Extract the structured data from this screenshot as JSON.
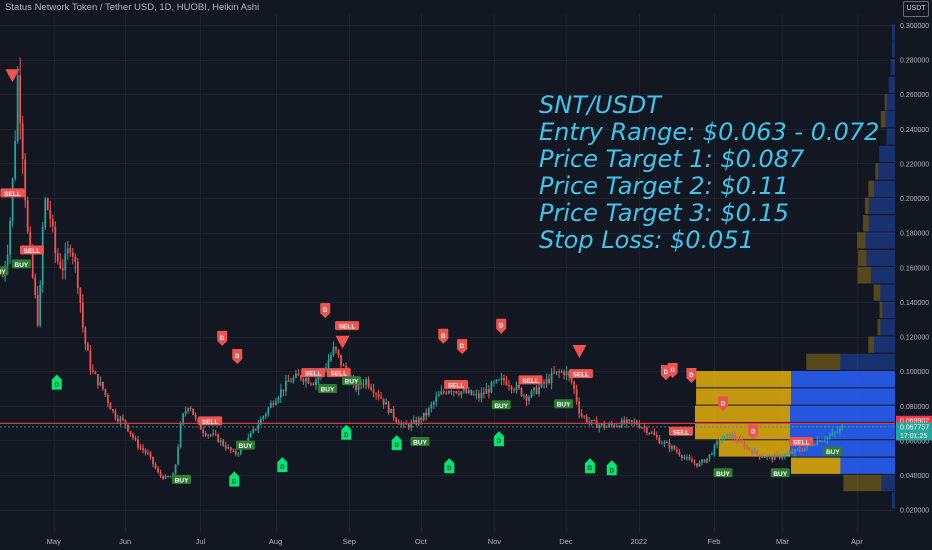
{
  "chart_data": {
    "type": "candlestick",
    "title": "Status Network Token / Tether USD, 1D, HUOBI, Heikin Ashi",
    "currency": "USDT",
    "ylim": [
      0.02,
      0.3
    ],
    "y_ticks": [
      "0.300000",
      "0.280000",
      "0.260000",
      "0.240000",
      "0.220000",
      "0.200000",
      "0.180000",
      "0.160000",
      "0.140000",
      "0.120000",
      "0.100000",
      "0.080000",
      "0.060000",
      "0.040000",
      "0.020000"
    ],
    "x_ticks": [
      {
        "label": "May",
        "t": 0.05
      },
      {
        "label": "Jun",
        "t": 1.0
      },
      {
        "label": "Jul",
        "t": 2.0
      },
      {
        "label": "Aug",
        "t": 3.0
      },
      {
        "label": "Sep",
        "t": 3.98
      },
      {
        "label": "Oct",
        "t": 4.93
      },
      {
        "label": "Nov",
        "t": 5.91
      },
      {
        "label": "Dec",
        "t": 6.86
      },
      {
        "label": "2022",
        "t": 7.83
      },
      {
        "label": "Feb",
        "t": 8.83
      },
      {
        "label": "Mar",
        "t": 9.74
      },
      {
        "label": "Apr",
        "t": 10.73
      }
    ],
    "price_path": [
      [
        -0.63,
        0.155
      ],
      [
        -0.55,
        0.175
      ],
      [
        -0.48,
        0.22
      ],
      [
        -0.43,
        0.27
      ],
      [
        -0.38,
        0.24
      ],
      [
        -0.3,
        0.18
      ],
      [
        -0.22,
        0.15
      ],
      [
        -0.15,
        0.125
      ],
      [
        -0.08,
        0.2
      ],
      [
        0.0,
        0.19
      ],
      [
        0.08,
        0.165
      ],
      [
        0.18,
        0.16
      ],
      [
        0.28,
        0.175
      ],
      [
        0.38,
        0.15
      ],
      [
        0.45,
        0.12
      ],
      [
        0.55,
        0.1
      ],
      [
        0.7,
        0.09
      ],
      [
        0.85,
        0.075
      ],
      [
        1.0,
        0.07
      ],
      [
        1.15,
        0.058
      ],
      [
        1.3,
        0.052
      ],
      [
        1.45,
        0.04
      ],
      [
        1.55,
        0.038
      ],
      [
        1.65,
        0.04
      ],
      [
        1.75,
        0.072
      ],
      [
        1.85,
        0.082
      ],
      [
        1.95,
        0.07
      ],
      [
        2.05,
        0.065
      ],
      [
        2.2,
        0.062
      ],
      [
        2.35,
        0.056
      ],
      [
        2.45,
        0.052
      ],
      [
        2.55,
        0.055
      ],
      [
        2.7,
        0.065
      ],
      [
        2.85,
        0.075
      ],
      [
        3.0,
        0.085
      ],
      [
        3.2,
        0.095
      ],
      [
        3.35,
        0.097
      ],
      [
        3.5,
        0.094
      ],
      [
        3.65,
        0.102
      ],
      [
        3.78,
        0.113
      ],
      [
        3.9,
        0.102
      ],
      [
        4.05,
        0.09
      ],
      [
        4.2,
        0.095
      ],
      [
        4.4,
        0.085
      ],
      [
        4.55,
        0.075
      ],
      [
        4.7,
        0.068
      ],
      [
        4.85,
        0.07
      ],
      [
        5.0,
        0.075
      ],
      [
        5.15,
        0.085
      ],
      [
        5.3,
        0.09
      ],
      [
        5.5,
        0.088
      ],
      [
        5.7,
        0.085
      ],
      [
        5.9,
        0.092
      ],
      [
        6.05,
        0.095
      ],
      [
        6.2,
        0.09
      ],
      [
        6.35,
        0.085
      ],
      [
        6.55,
        0.092
      ],
      [
        6.7,
        0.098
      ],
      [
        6.85,
        0.1
      ],
      [
        6.95,
        0.093
      ],
      [
        7.05,
        0.075
      ],
      [
        7.2,
        0.07
      ],
      [
        7.4,
        0.068
      ],
      [
        7.6,
        0.07
      ],
      [
        7.8,
        0.07
      ],
      [
        7.95,
        0.066
      ],
      [
        8.1,
        0.06
      ],
      [
        8.3,
        0.055
      ],
      [
        8.5,
        0.048
      ],
      [
        8.62,
        0.046
      ],
      [
        8.75,
        0.05
      ],
      [
        8.9,
        0.06
      ],
      [
        9.05,
        0.063
      ],
      [
        9.2,
        0.058
      ],
      [
        9.4,
        0.052
      ],
      [
        9.6,
        0.05
      ],
      [
        9.8,
        0.052
      ],
      [
        10.0,
        0.055
      ],
      [
        10.2,
        0.06
      ],
      [
        10.4,
        0.063
      ],
      [
        10.55,
        0.0678
      ]
    ],
    "horizontal_lines": [
      {
        "label": "0.069902",
        "value": 0.0699,
        "color": "#f23645"
      },
      {
        "label": "0.067757",
        "value": 0.0678,
        "color": "#26a69a"
      }
    ],
    "countdown": "17:01:25",
    "signals": [
      {
        "label": "SELL",
        "t": -0.5,
        "price": 0.203,
        "kind": "sell"
      },
      {
        "label": "SELL",
        "t": -0.24,
        "price": 0.17,
        "kind": "sell"
      },
      {
        "label": "BUY",
        "t": -0.68,
        "price": 0.158,
        "kind": "buy"
      },
      {
        "label": "BUY",
        "t": -0.38,
        "price": 0.162,
        "kind": "buy"
      },
      {
        "label": "BUY",
        "t": 1.75,
        "price": 0.0375,
        "kind": "buy"
      },
      {
        "label": "SELL",
        "t": 2.13,
        "price": 0.0713,
        "kind": "sell"
      },
      {
        "label": "BUY",
        "t": 2.6,
        "price": 0.0573,
        "kind": "buy"
      },
      {
        "label": "SELL",
        "t": 3.5,
        "price": 0.0992,
        "kind": "sell"
      },
      {
        "label": "BUY",
        "t": 3.69,
        "price": 0.09,
        "kind": "buy"
      },
      {
        "label": "SELL",
        "t": 3.84,
        "price": 0.0992,
        "kind": "sell"
      },
      {
        "label": "SELL",
        "t": 3.95,
        "price": 0.1263,
        "kind": "sell"
      },
      {
        "label": "BUY",
        "t": 4.01,
        "price": 0.0945,
        "kind": "buy"
      },
      {
        "label": "BUY",
        "t": 4.92,
        "price": 0.0594,
        "kind": "buy"
      },
      {
        "label": "SELL",
        "t": 5.4,
        "price": 0.0923,
        "kind": "sell"
      },
      {
        "label": "BUY",
        "t": 6.0,
        "price": 0.0806,
        "kind": "buy"
      },
      {
        "label": "SELL",
        "t": 6.39,
        "price": 0.095,
        "kind": "sell"
      },
      {
        "label": "BUY",
        "t": 6.83,
        "price": 0.0812,
        "kind": "buy"
      },
      {
        "label": "SELL",
        "t": 7.06,
        "price": 0.0986,
        "kind": "sell"
      },
      {
        "label": "SELL",
        "t": 8.39,
        "price": 0.0653,
        "kind": "sell"
      },
      {
        "label": "BUY",
        "t": 8.95,
        "price": 0.0413,
        "kind": "buy"
      },
      {
        "label": "BUY",
        "t": 9.71,
        "price": 0.0413,
        "kind": "buy"
      },
      {
        "label": "SELL",
        "t": 9.99,
        "price": 0.0593,
        "kind": "sell"
      },
      {
        "label": "BUY",
        "t": 10.41,
        "price": 0.0538,
        "kind": "buy"
      }
    ],
    "markers": [
      {
        "kind": "triangle-down",
        "t": -0.5,
        "price": 0.271
      },
      {
        "kind": "triangle-down",
        "t": 3.89,
        "price": 0.117
      },
      {
        "kind": "triangle-down",
        "t": 7.04,
        "price": 0.1117
      },
      {
        "kind": "flag-down",
        "t": 2.29,
        "price": 0.1187
      },
      {
        "kind": "flag-down",
        "t": 2.49,
        "price": 0.1082
      },
      {
        "kind": "flag-down",
        "t": 3.66,
        "price": 0.1347
      },
      {
        "kind": "flag-down",
        "t": 5.23,
        "price": 0.1199
      },
      {
        "kind": "flag-down",
        "t": 5.48,
        "price": 0.1139
      },
      {
        "kind": "flag-down",
        "t": 6.0,
        "price": 0.1257
      },
      {
        "kind": "flag-down",
        "t": 8.19,
        "price": 0.0989
      },
      {
        "kind": "flag-down",
        "t": 8.28,
        "price": 0.1001
      },
      {
        "kind": "flag-down",
        "t": 8.53,
        "price": 0.0972
      },
      {
        "kind": "flag-down",
        "t": 8.95,
        "price": 0.0808
      },
      {
        "kind": "flag-down",
        "t": 9.35,
        "price": 0.0646
      },
      {
        "kind": "flag-up",
        "t": 0.09,
        "price": 0.094
      },
      {
        "kind": "flag-up",
        "t": 2.45,
        "price": 0.038
      },
      {
        "kind": "flag-up",
        "t": 3.09,
        "price": 0.0463
      },
      {
        "kind": "flag-up",
        "t": 3.94,
        "price": 0.065
      },
      {
        "kind": "flag-up",
        "t": 4.61,
        "price": 0.059
      },
      {
        "kind": "flag-up",
        "t": 5.31,
        "price": 0.0457
      },
      {
        "kind": "flag-up",
        "t": 5.97,
        "price": 0.0613
      },
      {
        "kind": "flag-up",
        "t": 7.18,
        "price": 0.0457
      },
      {
        "kind": "flag-up",
        "t": 7.47,
        "price": 0.0445
      }
    ],
    "volume_profile": [
      {
        "price": 0.2953,
        "blue": 0.03,
        "gold": 0.0
      },
      {
        "price": 0.2856,
        "blue": 0.03,
        "gold": 0.0
      },
      {
        "price": 0.2754,
        "blue": 0.04,
        "gold": 0.0
      },
      {
        "price": 0.2651,
        "blue": 0.06,
        "gold": 0.0
      },
      {
        "price": 0.2551,
        "blue": 0.08,
        "gold": 0.02
      },
      {
        "price": 0.2453,
        "blue": 0.09,
        "gold": 0.05
      },
      {
        "price": 0.2353,
        "blue": 0.08,
        "gold": 0.0
      },
      {
        "price": 0.2253,
        "blue": 0.15,
        "gold": 0.0
      },
      {
        "price": 0.2151,
        "blue": 0.16,
        "gold": 0.03
      },
      {
        "price": 0.2051,
        "blue": 0.2,
        "gold": 0.06
      },
      {
        "price": 0.1953,
        "blue": 0.25,
        "gold": 0.04
      },
      {
        "price": 0.1851,
        "blue": 0.25,
        "gold": 0.06
      },
      {
        "price": 0.1753,
        "blue": 0.28,
        "gold": 0.09
      },
      {
        "price": 0.1651,
        "blue": 0.27,
        "gold": 0.09
      },
      {
        "price": 0.1551,
        "blue": 0.23,
        "gold": 0.14
      },
      {
        "price": 0.1451,
        "blue": 0.14,
        "gold": 0.07
      },
      {
        "price": 0.1351,
        "blue": 0.12,
        "gold": 0.03
      },
      {
        "price": 0.1251,
        "blue": 0.14,
        "gold": 0.03
      },
      {
        "price": 0.1151,
        "blue": 0.2,
        "gold": 0.06
      },
      {
        "price": 0.1051,
        "blue": 0.52,
        "gold": 0.36
      },
      {
        "price": 0.0951,
        "blue": 0.99,
        "gold": 1.0
      },
      {
        "price": 0.0851,
        "blue": 0.99,
        "gold": 1.0
      },
      {
        "price": 0.0751,
        "blue": 1.0,
        "gold": 1.0
      },
      {
        "price": 0.0651,
        "blue": 1.0,
        "gold": 1.0
      },
      {
        "price": 0.0551,
        "blue": 1.0,
        "gold": 0.75
      },
      {
        "price": 0.0451,
        "blue": 0.52,
        "gold": 0.52
      },
      {
        "price": 0.0351,
        "blue": 0.13,
        "gold": 0.4
      },
      {
        "price": 0.0251,
        "blue": 0.03,
        "gold": 0.0
      }
    ],
    "colors": {
      "background": "#131722",
      "up": "#26a69a",
      "down": "#ef5350",
      "volume_up": "#2962ff",
      "volume_down": "#f0b90b",
      "annotation": "#40c4ea"
    }
  },
  "annotation_lines": [
    "SNT/USDT",
    "Entry Range: $0.063 - 0.072",
    "Price Target 1: $0.087",
    "Price Target 2: $0.11",
    "Price Target 3: $0.15",
    "Stop Loss: $0.051"
  ]
}
